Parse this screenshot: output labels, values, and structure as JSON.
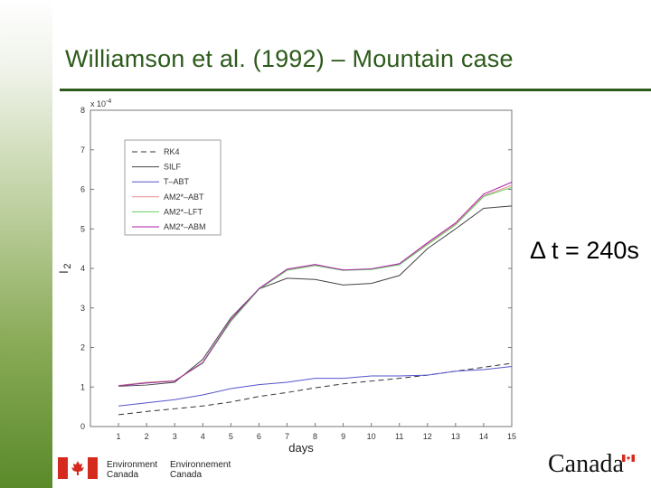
{
  "slide": {
    "title": "Williamson et al. (1992) – Mountain case",
    "dt_text": "Δ t = 240s"
  },
  "footer": {
    "dept_en_line1": "Environment",
    "dept_en_line2": "Canada",
    "dept_fr_line1": "Environnement",
    "dept_fr_line2": "Canada",
    "wordmark": "Canada",
    "colors": {
      "flag_red": "#d52b1e",
      "title_green": "#2d5a1b"
    }
  },
  "chart_data": {
    "type": "line",
    "xlabel": "days",
    "ylabel": "l",
    "ylabel_sub": "2",
    "y_multiplier": "x 10",
    "y_multiplier_exp": "-4",
    "x": [
      1,
      2,
      3,
      4,
      5,
      6,
      7,
      8,
      9,
      10,
      11,
      12,
      13,
      14,
      15
    ],
    "xlim": [
      0,
      15
    ],
    "ylim": [
      0,
      8
    ],
    "xticks": [
      1,
      2,
      3,
      4,
      5,
      6,
      7,
      8,
      9,
      10,
      11,
      12,
      13,
      14,
      15
    ],
    "yticks": [
      0,
      1,
      2,
      3,
      4,
      5,
      6,
      7,
      8
    ],
    "grid": false,
    "legend_position": "top-left",
    "series": [
      {
        "name": "RK4",
        "color": "#333333",
        "dash": true,
        "values": [
          0.3,
          0.38,
          0.45,
          0.52,
          0.62,
          0.76,
          0.86,
          0.98,
          1.08,
          1.15,
          1.22,
          1.3,
          1.4,
          1.5,
          1.6
        ]
      },
      {
        "name": "SILF",
        "color": "#444444",
        "dash": false,
        "values": [
          1.02,
          1.05,
          1.12,
          1.7,
          2.75,
          3.48,
          3.75,
          3.72,
          3.58,
          3.62,
          3.82,
          4.5,
          5.0,
          5.52,
          5.58
        ]
      },
      {
        "name": "T–ABT",
        "color": "#5555cc",
        "dash": false,
        "values": [
          0.52,
          0.6,
          0.68,
          0.8,
          0.96,
          1.06,
          1.12,
          1.22,
          1.22,
          1.28,
          1.28,
          1.3,
          1.4,
          1.44,
          1.52
        ]
      },
      {
        "name": "AM2*–ABT",
        "color": "#e89090",
        "dash": false,
        "values": [
          1.04,
          1.12,
          1.16,
          1.62,
          2.68,
          3.48,
          3.96,
          4.08,
          3.96,
          3.98,
          4.1,
          4.62,
          5.12,
          5.84,
          6.1
        ]
      },
      {
        "name": "AM2*–LFT",
        "color": "#66cc66",
        "dash": false,
        "values": [
          1.03,
          1.11,
          1.15,
          1.6,
          2.66,
          3.47,
          3.95,
          4.07,
          3.95,
          3.97,
          4.09,
          4.6,
          5.1,
          5.82,
          6.05
        ]
      },
      {
        "name": "AM2*–ABM",
        "color": "#aa22aa",
        "dash": false,
        "values": [
          1.03,
          1.1,
          1.15,
          1.62,
          2.7,
          3.49,
          3.98,
          4.1,
          3.96,
          3.99,
          4.12,
          4.65,
          5.15,
          5.88,
          6.18
        ]
      }
    ]
  }
}
